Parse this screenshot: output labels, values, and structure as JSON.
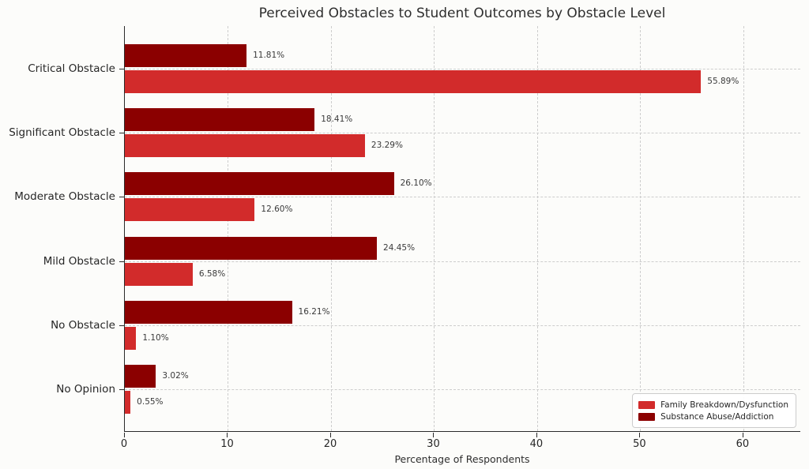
{
  "chart_data": {
    "type": "bar",
    "orientation": "horizontal",
    "title": "Perceived Obstacles to Student Outcomes by Obstacle Level",
    "xlabel": "Percentage of Respondents",
    "ylabel": "",
    "categories": [
      "Critical Obstacle",
      "Significant Obstacle",
      "Moderate Obstacle",
      "Mild Obstacle",
      "No Obstacle",
      "No Opinion"
    ],
    "series": [
      {
        "name": "Family Breakdown/Dysfunction",
        "color": "#d22b2b",
        "position_in_group": "bottom",
        "values": [
          55.89,
          23.29,
          12.6,
          6.58,
          1.1,
          0.55
        ]
      },
      {
        "name": "Substance Abuse/Addiction",
        "color": "#8b0000",
        "position_in_group": "top",
        "values": [
          11.81,
          18.41,
          26.1,
          24.45,
          16.21,
          3.02
        ]
      }
    ],
    "value_label_suffix": "%",
    "value_label_decimals": 2,
    "x_ticks": [
      0,
      10,
      20,
      30,
      40,
      50,
      60
    ],
    "xlim": [
      0,
      65.6
    ],
    "grid": true,
    "grid_style": "dashed",
    "legend_position": "lower right",
    "colors": {
      "grid": "#cdcdcd",
      "spine": "#2a2a2a",
      "text": "#262626",
      "value_label": "#3a3a3a",
      "background": "#fcfcfa"
    }
  }
}
